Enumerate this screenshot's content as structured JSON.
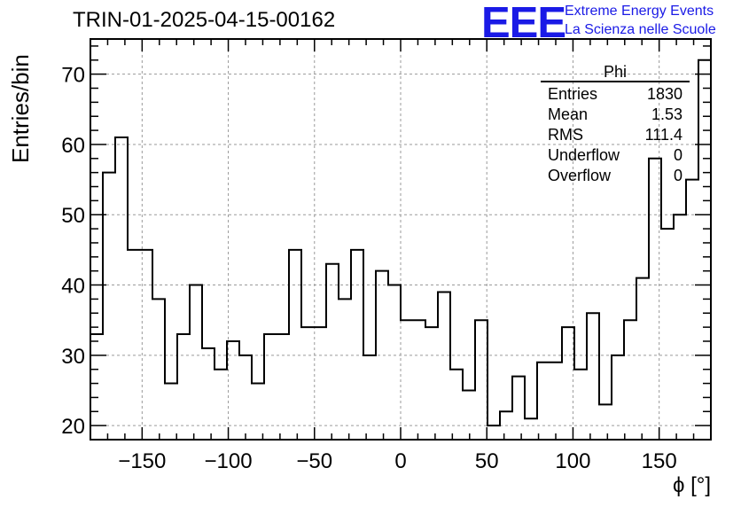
{
  "header": {
    "run_title": "TRIN-01-2025-04-15-00162",
    "logo_text": "EEE",
    "org_line1": "Extreme Energy Events",
    "org_line2": "La Scienza nelle Scuole"
  },
  "stats_box": {
    "name": "Phi",
    "rows": [
      {
        "label": "Entries",
        "value": "1830"
      },
      {
        "label": "Mean",
        "value": "1.53"
      },
      {
        "label": "RMS",
        "value": "111.4"
      },
      {
        "label": "Underflow",
        "value": "0"
      },
      {
        "label": "Overflow",
        "value": "0"
      }
    ]
  },
  "colors": {
    "logo": "#1a1ae6",
    "line": "#000000",
    "grid": "#9a9a9a"
  },
  "chart_data": {
    "type": "histogram",
    "title": "TRIN-01-2025-04-15-00162",
    "xlabel": "ϕ [°]",
    "ylabel": "Entries/bin",
    "xlim": [
      -180,
      180
    ],
    "ylim": [
      18,
      75
    ],
    "bin_width": 7.2,
    "x_ticks": [
      -150,
      -100,
      -50,
      0,
      50,
      100,
      150
    ],
    "x_tick_labels": [
      "−150",
      "−100",
      "−50",
      "0",
      "50",
      "100",
      "150"
    ],
    "y_ticks": [
      20,
      30,
      40,
      50,
      60,
      70
    ],
    "y_tick_labels": [
      "20",
      "30",
      "40",
      "50",
      "60",
      "70"
    ],
    "grid": true,
    "values": [
      33,
      56,
      61,
      45,
      45,
      38,
      26,
      33,
      40,
      31,
      28,
      32,
      30,
      26,
      33,
      33,
      45,
      34,
      34,
      43,
      38,
      45,
      30,
      42,
      40,
      35,
      35,
      34,
      39,
      28,
      25,
      35,
      20,
      22,
      27,
      21,
      29,
      29,
      34,
      28,
      36,
      23,
      30,
      35,
      41,
      58,
      48,
      50,
      55,
      72
    ]
  }
}
